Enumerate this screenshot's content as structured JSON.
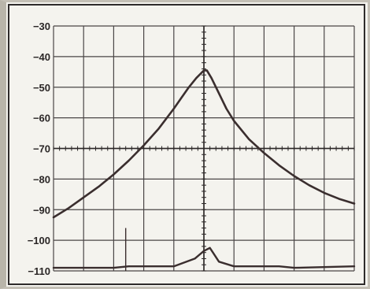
{
  "chart_data": {
    "type": "line",
    "title": "",
    "xlabel": "",
    "ylabel": "",
    "ylim": [
      -110,
      -30
    ],
    "xlim": [
      -5,
      5
    ],
    "y_ticks": [
      -30,
      -40,
      -50,
      -60,
      -70,
      -80,
      -90,
      -100,
      -110
    ],
    "y_tick_labels": [
      "−30",
      "−40",
      "−50",
      "−60",
      "−70",
      "−80",
      "−90",
      "−100",
      "−110"
    ],
    "x_divisions": 10,
    "grid": true,
    "series": [
      {
        "x": [
          -5,
          -4.5,
          -4,
          -3.5,
          -3,
          -2.5,
          -2,
          -1.5,
          -1,
          -0.75,
          -0.5,
          -0.25,
          0,
          0.1,
          0.25,
          0.5,
          0.75,
          1,
          1.5,
          2,
          2.5,
          3,
          3.5,
          4,
          4.5,
          5
        ],
        "y": [
          -92.5,
          -89.5,
          -86,
          -82.5,
          -78.5,
          -74,
          -69,
          -63.5,
          -57,
          -53.5,
          -50,
          -47,
          -44.5,
          -44.5,
          -47,
          -52,
          -57,
          -61,
          -67,
          -71.5,
          -75.5,
          -79,
          -82,
          -84.5,
          -86.5,
          -88
        ]
      },
      {
        "x": [
          -5,
          -3,
          -2.5,
          -1,
          -0.3,
          0,
          0.2,
          0.3,
          0.5,
          1,
          2.5,
          3,
          5
        ],
        "y": [
          -109,
          -109,
          -108.5,
          -108.5,
          -106,
          -103.5,
          -102.5,
          -104,
          -107,
          -108.5,
          -108.5,
          -109,
          -108.5
        ]
      }
    ],
    "spurs": [
      {
        "x": -2.6,
        "y": -96
      }
    ]
  }
}
